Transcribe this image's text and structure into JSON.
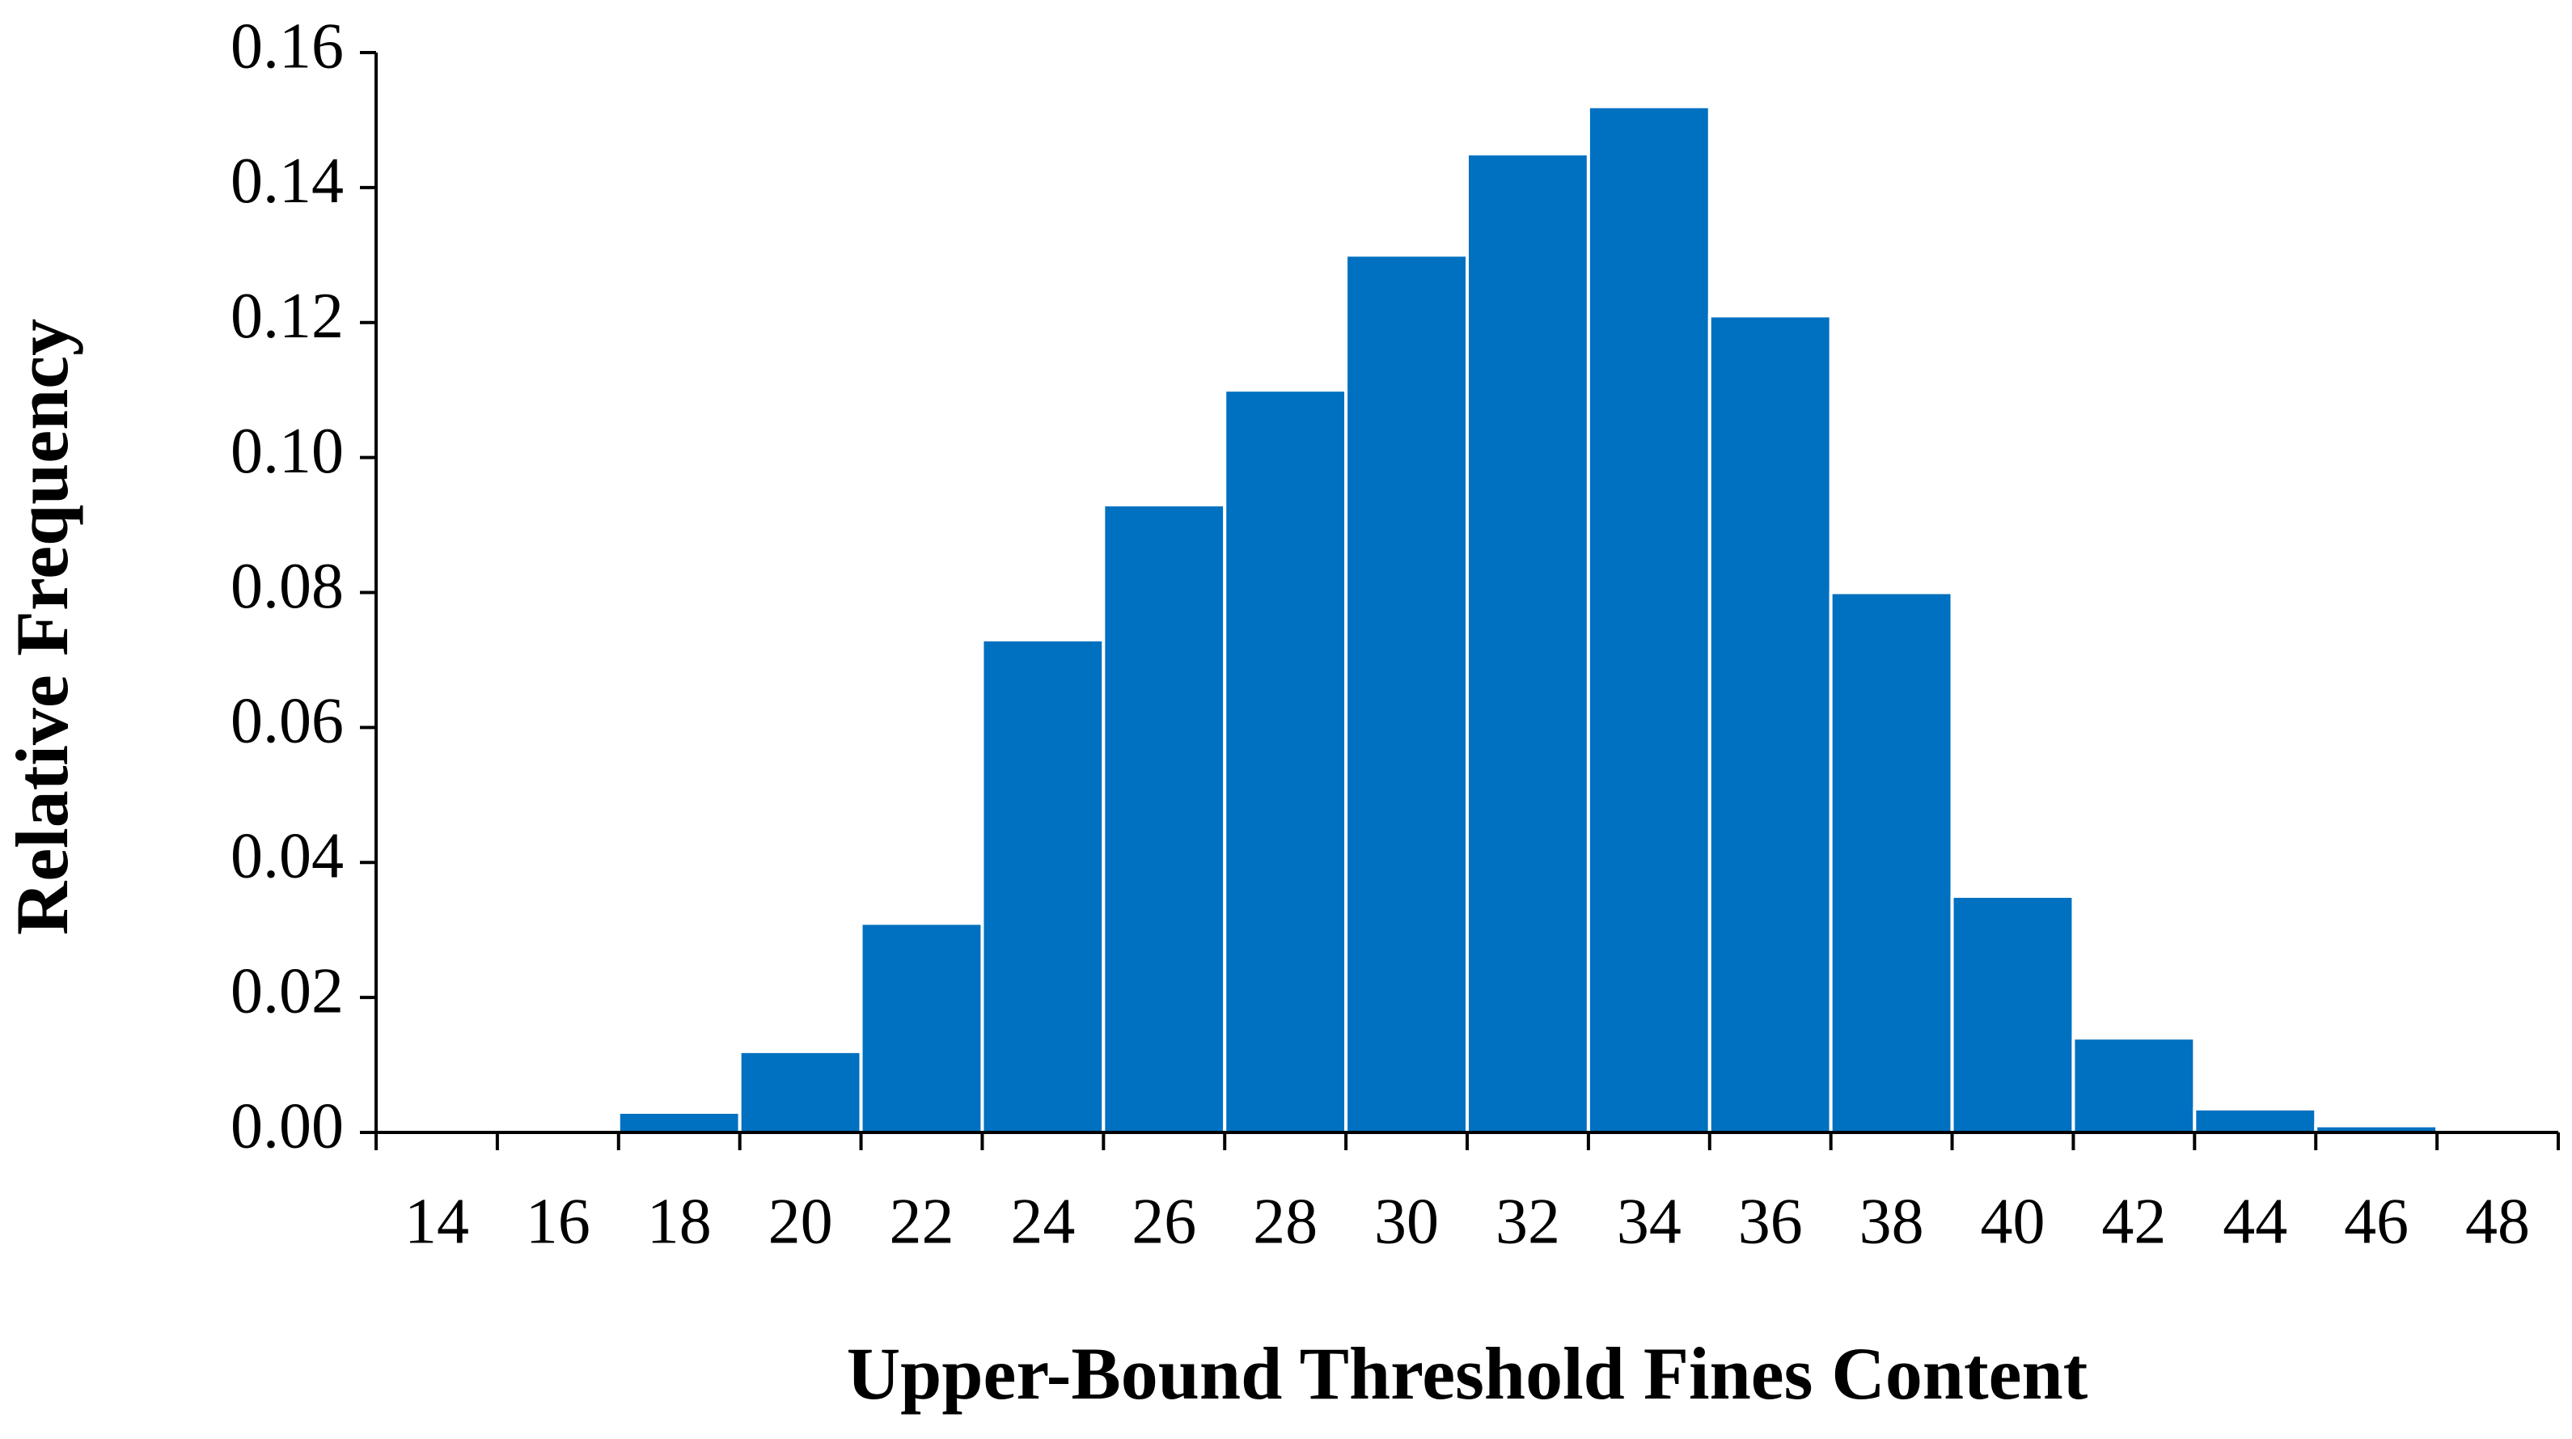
{
  "chart_data": {
    "type": "bar",
    "x_label": "Upper-Bound Threshold Fines Content",
    "y_label": "Relative Frequency",
    "categories": [
      "14",
      "16",
      "18",
      "20",
      "22",
      "24",
      "26",
      "28",
      "30",
      "32",
      "34",
      "36",
      "38",
      "40",
      "42",
      "44",
      "46",
      "48"
    ],
    "values": [
      0,
      0,
      0.003,
      0.012,
      0.031,
      0.073,
      0.093,
      0.11,
      0.13,
      0.145,
      0.152,
      0.121,
      0.08,
      0.035,
      0.014,
      0.0035,
      0.001,
      0
    ],
    "color": "#0070c0",
    "ylim": [
      0,
      0.16
    ],
    "yticks": [
      {
        "value": 0,
        "label": "0.00"
      },
      0.02,
      0.04,
      0.06,
      0.08,
      {
        "value": 0.1,
        "label": "0.10"
      },
      0.12,
      0.14,
      0.16
    ],
    "grid": false
  }
}
